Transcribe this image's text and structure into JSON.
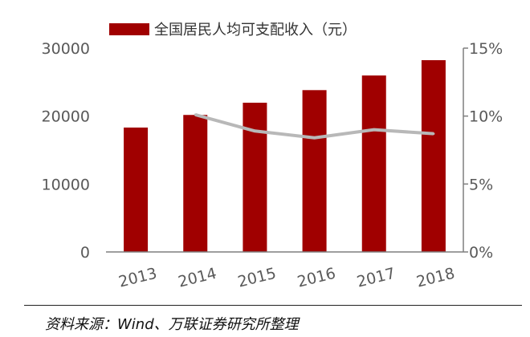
{
  "chart_data": {
    "type": "bar",
    "categories": [
      "2013",
      "2014",
      "2015",
      "2016",
      "2017",
      "2018"
    ],
    "series": [
      {
        "name": "全国居民人均可支配收入（元）",
        "type": "bar",
        "axis": "left",
        "values": [
          18311,
          20167,
          21966,
          23821,
          25974,
          28228
        ]
      },
      {
        "type": "line",
        "axis": "right",
        "values": [
          null,
          10.1,
          8.9,
          8.4,
          9.0,
          8.7
        ]
      }
    ],
    "left_axis": {
      "ylim": [
        0,
        30000
      ],
      "ticks": [
        "0",
        "10000",
        "20000",
        "30000"
      ]
    },
    "right_axis": {
      "ylim": [
        0,
        15
      ],
      "ticks": [
        "0%",
        "5%",
        "10%",
        "15%"
      ]
    },
    "grid": false,
    "legend": "top"
  },
  "source": "资料来源：Wind、万联证券研究所整理",
  "colors": {
    "bar": "#a00000",
    "line": "#b8b8b8",
    "axis": "#7f7f7f",
    "text": "#595959"
  }
}
